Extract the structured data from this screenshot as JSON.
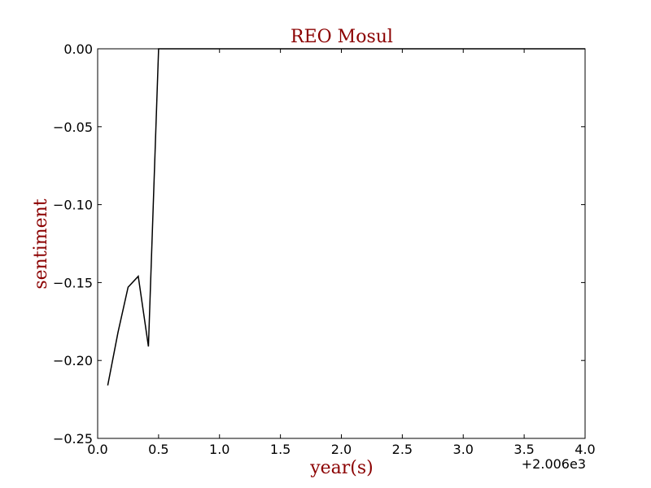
{
  "chart_data": {
    "type": "line",
    "title": "REO Mosul",
    "xlabel": "year(s)",
    "ylabel": "sentiment",
    "x_offset_label": "+2.006e3",
    "xlim": [
      0.0,
      4.0
    ],
    "ylim": [
      -0.25,
      0.0
    ],
    "x_ticks": [
      0.0,
      0.5,
      1.0,
      1.5,
      2.0,
      2.5,
      3.0,
      3.5,
      4.0
    ],
    "x_tick_labels": [
      "0.0",
      "0.5",
      "1.0",
      "1.5",
      "2.0",
      "2.5",
      "3.0",
      "3.5",
      "4.0"
    ],
    "y_ticks": [
      0.0,
      -0.05,
      -0.1,
      -0.15,
      -0.2,
      -0.25
    ],
    "y_tick_labels": [
      "0.00",
      "−0.05",
      "−0.10",
      "−0.15",
      "−0.20",
      "−0.25"
    ],
    "grid": false,
    "series": [
      {
        "x": [
          0.083,
          0.167,
          0.25,
          0.333,
          0.417,
          0.5,
          4.0
        ],
        "y": [
          -0.216,
          -0.182,
          -0.153,
          -0.146,
          -0.191,
          0.0,
          0.0
        ],
        "color": "#000000"
      }
    ],
    "text_color": "#8b0000"
  }
}
